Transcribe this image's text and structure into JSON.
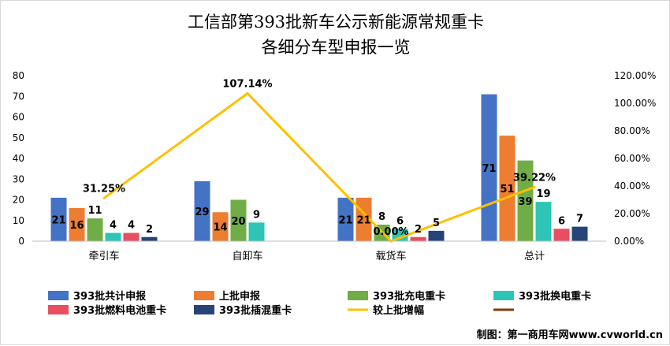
{
  "chart_data": {
    "type": "bar",
    "title_lines": [
      "工信部第393批新车公示新能源常规重卡",
      "各细分车型申报一览"
    ],
    "categories": [
      "牵引车",
      "自卸车",
      "载货车",
      "总计"
    ],
    "series": [
      {
        "name": "393批共计申报",
        "color": "#4472c4",
        "values": [
          21,
          29,
          21,
          71
        ]
      },
      {
        "name": "上批申报",
        "color": "#ed7d31",
        "values": [
          16,
          14,
          21,
          51
        ]
      },
      {
        "name": "393批充电重卡",
        "color": "#70ad47",
        "values": [
          11,
          20,
          8,
          39
        ]
      },
      {
        "name": "393批换电重卡",
        "color": "#2ec4b6",
        "values": [
          4,
          9,
          6,
          19
        ]
      },
      {
        "name": "393批燃料电池重卡",
        "color": "#e84e5f",
        "values": [
          4,
          0,
          2,
          6
        ]
      },
      {
        "name": "393批插混重卡",
        "color": "#264478",
        "values": [
          2,
          0,
          5,
          7
        ]
      }
    ],
    "line_series": {
      "name": "较上批增幅",
      "color": "#ffc000",
      "values": [
        31.25,
        107.14,
        0.0,
        39.22
      ],
      "labels": [
        "31.25%",
        "107.14%",
        "0.00%",
        "39.22%"
      ]
    },
    "y_left": {
      "min": 0,
      "max": 80,
      "step": 10,
      "ticks": [
        "0",
        "10",
        "20",
        "30",
        "40",
        "50",
        "60",
        "70",
        "80"
      ]
    },
    "y_right": {
      "min": 0,
      "max": 120,
      "step": 20,
      "ticks": [
        "0.00%",
        "20.00%",
        "40.00%",
        "60.00%",
        "80.00%",
        "100.00%",
        "120.00%"
      ]
    },
    "legend": {
      "placement": "bottom",
      "extra_swatch_color": "#843c0c"
    },
    "credit": "制图：第一商用车网www.cvworld.cn"
  }
}
